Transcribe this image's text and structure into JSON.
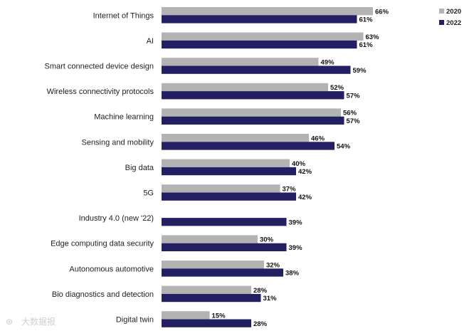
{
  "chart_data": {
    "type": "bar",
    "orientation": "horizontal",
    "title": "",
    "xlabel": "",
    "ylabel": "",
    "xlim": [
      0,
      70
    ],
    "grid": false,
    "legend_position": "top-right",
    "categories": [
      "Internet of Things",
      "AI",
      "Smart connected device design",
      "Wireless connectivity protocols",
      "Machine learning",
      "Sensing and mobility",
      "Big data",
      "5G",
      "Industry 4.0 (new '22)",
      "Edge computing data security",
      "Autonomous automotive",
      "Bio diagnostics and detection",
      "Digital twin"
    ],
    "series": [
      {
        "name": "2020",
        "color": "#b3b3b3",
        "values": [
          66,
          63,
          49,
          52,
          56,
          46,
          40,
          37,
          null,
          30,
          32,
          28,
          15
        ],
        "labels": [
          "66%",
          "63%",
          "49%",
          "52%",
          "56%",
          "46%",
          "40%",
          "37%",
          null,
          "30%",
          "32%",
          "28%",
          "15%"
        ]
      },
      {
        "name": "2022",
        "color": "#221f63",
        "values": [
          61,
          61,
          59,
          57,
          57,
          54,
          42,
          42,
          39,
          39,
          38,
          31,
          28
        ],
        "labels": [
          "61%",
          "61%",
          "59%",
          "57%",
          "57%",
          "54%",
          "42%",
          "42%",
          "39%",
          "39%",
          "38%",
          "31%",
          "28%"
        ]
      }
    ]
  },
  "watermark": {
    "text": "大数据报",
    "icon": "watermark-logo-icon"
  }
}
